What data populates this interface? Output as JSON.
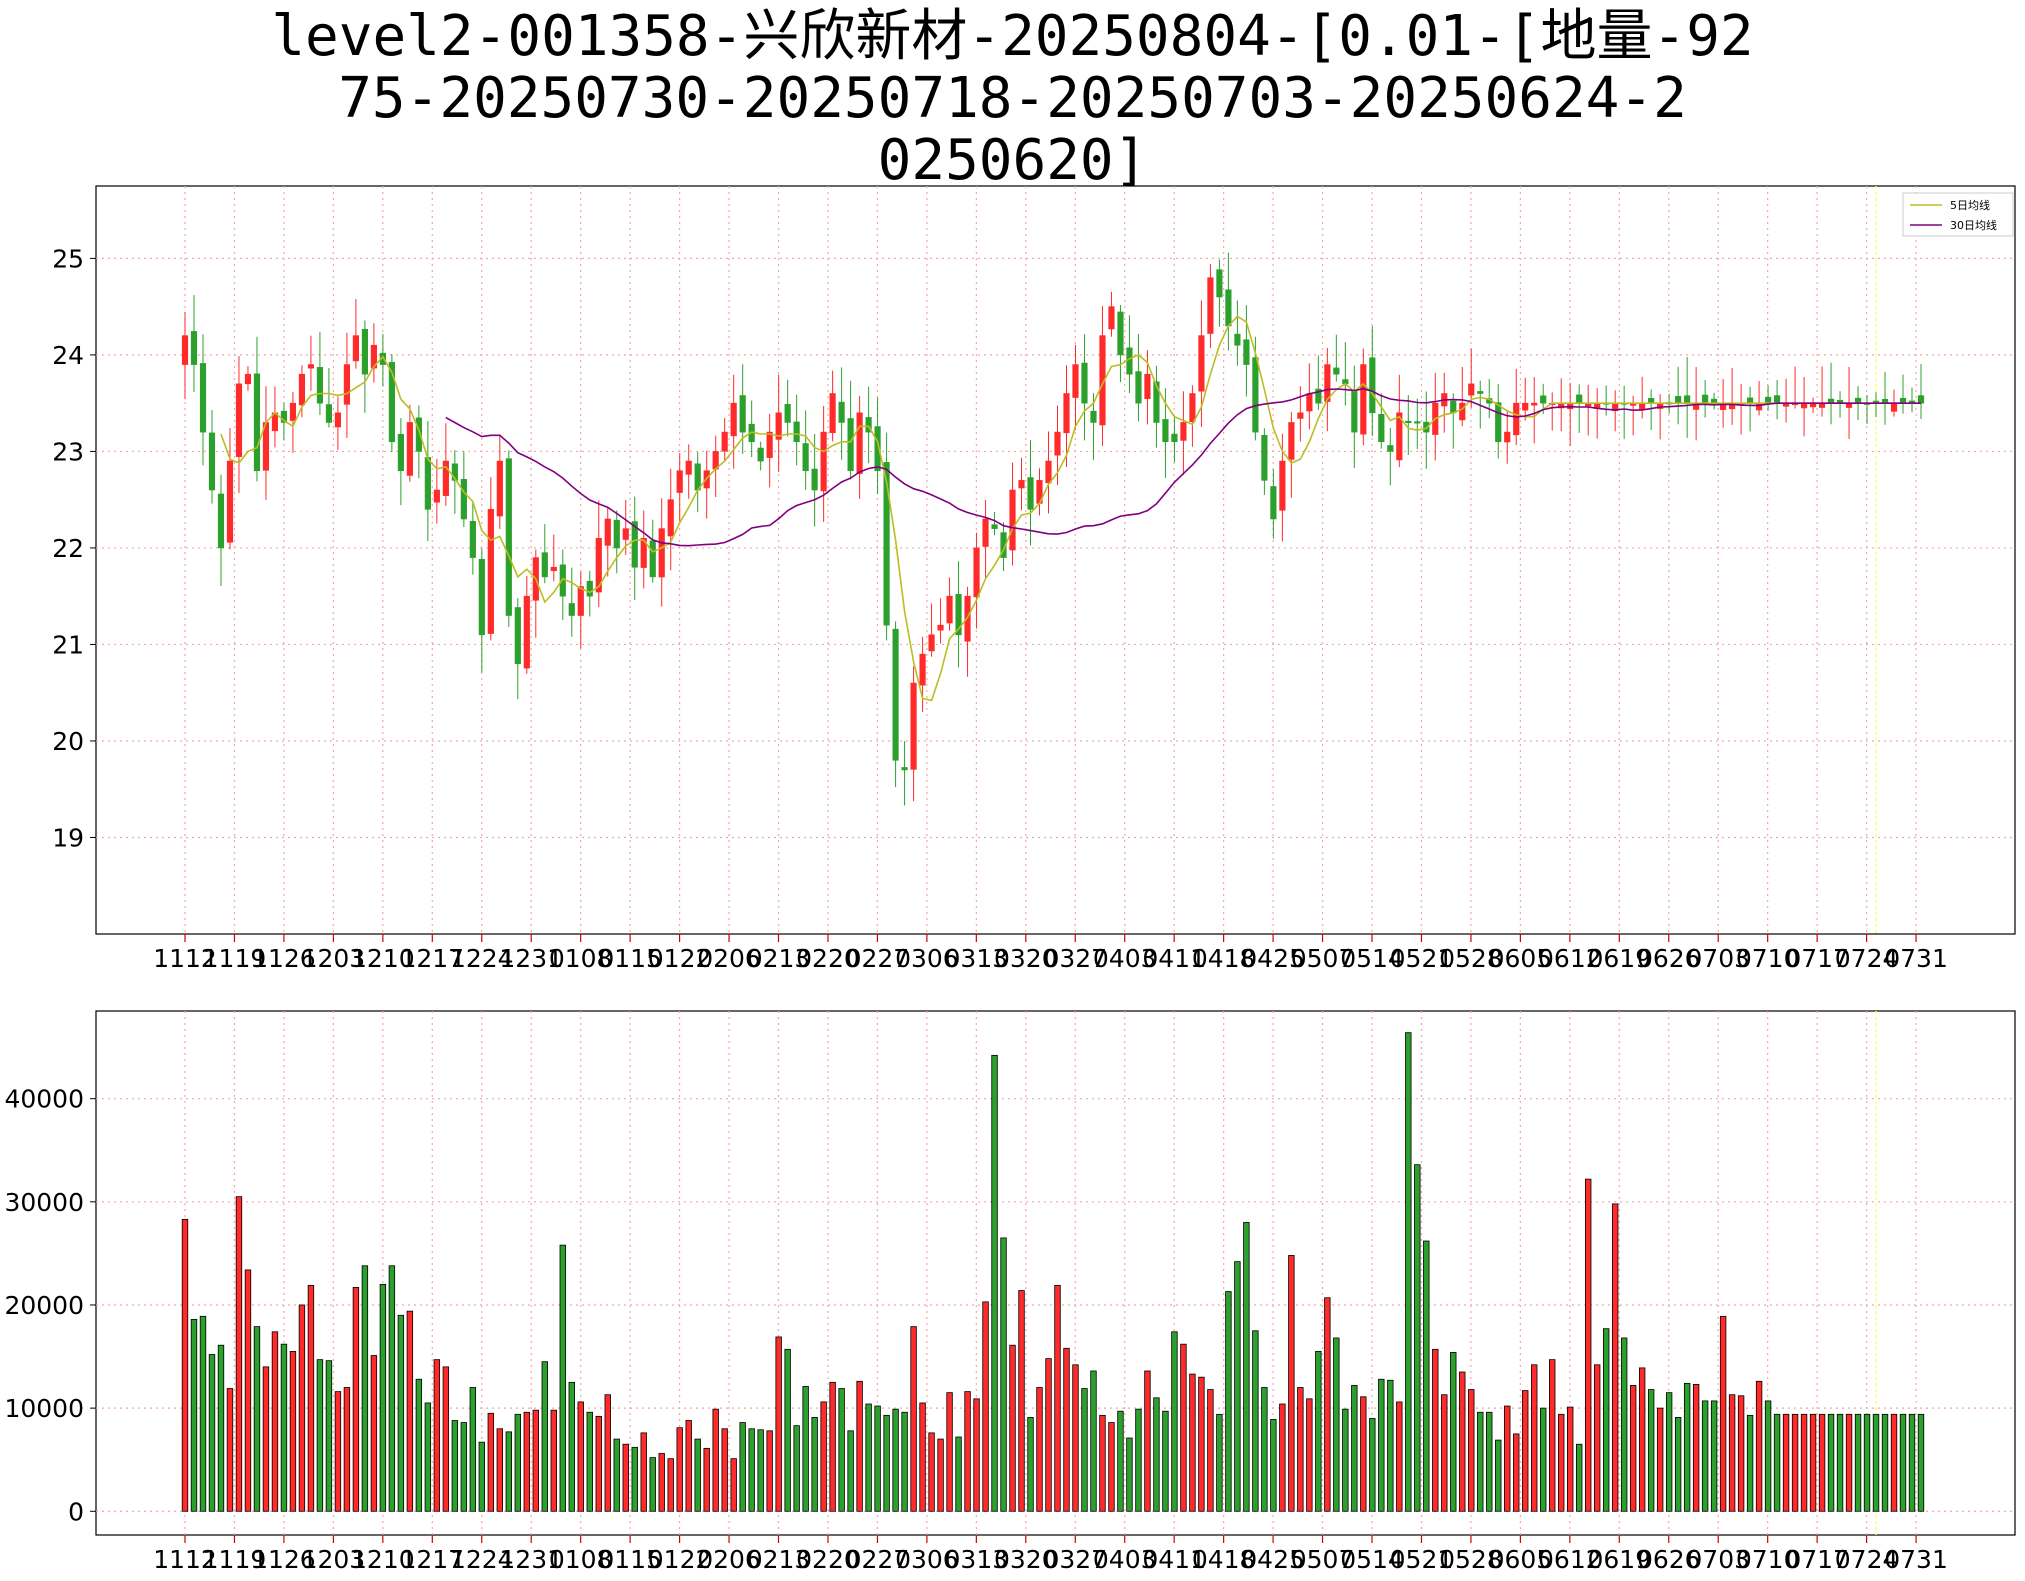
{
  "chart_data": {
    "type": "candlestick",
    "title_lines": [
      "level2-001358-兴欣新材-20250804-[0.01-[地量-92",
      "75-20250730-20250718-20250703-20250624-2",
      "0250620]"
    ],
    "x_ticks": [
      "1112",
      "1119",
      "1126",
      "1203",
      "1210",
      "1217",
      "1224",
      "1231",
      "0108",
      "0115",
      "0122",
      "0206",
      "0213",
      "0220",
      "0227",
      "0306",
      "0313",
      "0320",
      "0327",
      "0403",
      "0411",
      "0418",
      "0425",
      "0507",
      "0514",
      "0521",
      "0528",
      "0605",
      "0612",
      "0619",
      "0626",
      "0703",
      "0710",
      "0717",
      "0724",
      "0731"
    ],
    "price_axis": {
      "ylim": [
        18.0,
        25.75
      ],
      "ticks": [
        19,
        20,
        21,
        22,
        23,
        24,
        25
      ]
    },
    "volume_axis": {
      "ylim": [
        -2300,
        48500
      ],
      "ticks": [
        0,
        10000,
        20000,
        30000,
        40000
      ]
    },
    "grid": true,
    "legend": {
      "position": "top-right",
      "entries": [
        {
          "label": "5日均线",
          "color": "#bcbd22"
        },
        {
          "label": "30日均线",
          "color": "#800080"
        }
      ]
    },
    "highlight_line_index": 188,
    "colors": {
      "up": "#ff2b2b",
      "down": "#2ca02c",
      "ma5": "#bcbd22",
      "ma30": "#800080",
      "grid": "#f4a6a6",
      "highlight": "#ffff66"
    },
    "close_keypoints": [
      [
        0,
        24.2
      ],
      [
        1,
        23.9
      ],
      [
        2,
        23.2
      ],
      [
        3,
        22.6
      ],
      [
        4,
        22.0
      ],
      [
        5,
        22.9
      ],
      [
        6,
        23.7
      ],
      [
        7,
        23.8
      ],
      [
        8,
        22.8
      ],
      [
        9,
        23.3
      ],
      [
        10,
        23.4
      ],
      [
        11,
        23.3
      ],
      [
        12,
        23.5
      ],
      [
        13,
        23.8
      ],
      [
        14,
        23.9
      ],
      [
        15,
        23.5
      ],
      [
        16,
        23.3
      ],
      [
        17,
        23.4
      ],
      [
        18,
        23.9
      ],
      [
        19,
        24.2
      ],
      [
        20,
        23.8
      ],
      [
        21,
        24.1
      ],
      [
        22,
        23.9
      ],
      [
        23,
        23.1
      ],
      [
        24,
        22.8
      ],
      [
        25,
        23.3
      ],
      [
        26,
        23.0
      ],
      [
        27,
        22.4
      ],
      [
        28,
        22.6
      ],
      [
        29,
        22.9
      ],
      [
        30,
        22.7
      ],
      [
        31,
        22.3
      ],
      [
        32,
        21.9
      ],
      [
        33,
        21.1
      ],
      [
        34,
        22.4
      ],
      [
        35,
        22.9
      ],
      [
        36,
        21.3
      ],
      [
        37,
        20.8
      ],
      [
        38,
        21.5
      ],
      [
        39,
        21.9
      ],
      [
        40,
        21.7
      ],
      [
        41,
        21.8
      ],
      [
        42,
        21.5
      ],
      [
        43,
        21.3
      ],
      [
        44,
        21.6
      ],
      [
        45,
        21.5
      ],
      [
        46,
        22.1
      ],
      [
        47,
        22.3
      ],
      [
        48,
        22.0
      ],
      [
        49,
        22.2
      ],
      [
        50,
        21.8
      ],
      [
        51,
        22.1
      ],
      [
        52,
        21.7
      ],
      [
        53,
        22.2
      ],
      [
        54,
        22.5
      ],
      [
        55,
        22.8
      ],
      [
        56,
        22.9
      ],
      [
        57,
        22.6
      ],
      [
        58,
        22.8
      ],
      [
        59,
        23.0
      ],
      [
        60,
        23.2
      ],
      [
        61,
        23.5
      ],
      [
        62,
        23.2
      ],
      [
        63,
        23.1
      ],
      [
        64,
        22.9
      ],
      [
        65,
        23.2
      ],
      [
        66,
        23.4
      ],
      [
        67,
        23.3
      ],
      [
        68,
        23.1
      ],
      [
        69,
        22.8
      ],
      [
        70,
        22.6
      ],
      [
        71,
        23.2
      ],
      [
        72,
        23.6
      ],
      [
        73,
        23.3
      ],
      [
        74,
        22.8
      ],
      [
        75,
        23.4
      ],
      [
        76,
        23.2
      ],
      [
        77,
        22.8
      ],
      [
        78,
        21.2
      ],
      [
        79,
        19.8
      ],
      [
        80,
        19.7
      ],
      [
        81,
        20.6
      ],
      [
        82,
        20.9
      ],
      [
        83,
        21.1
      ],
      [
        84,
        21.2
      ],
      [
        85,
        21.5
      ],
      [
        86,
        21.1
      ],
      [
        87,
        21.5
      ],
      [
        88,
        22.0
      ],
      [
        89,
        22.3
      ],
      [
        90,
        22.2
      ],
      [
        91,
        21.9
      ],
      [
        92,
        22.6
      ],
      [
        93,
        22.7
      ],
      [
        94,
        22.4
      ],
      [
        95,
        22.7
      ],
      [
        96,
        22.9
      ],
      [
        97,
        23.2
      ],
      [
        98,
        23.6
      ],
      [
        99,
        23.9
      ],
      [
        100,
        23.5
      ],
      [
        101,
        23.3
      ],
      [
        102,
        24.2
      ],
      [
        103,
        24.5
      ],
      [
        104,
        24.0
      ],
      [
        105,
        23.8
      ],
      [
        106,
        23.5
      ],
      [
        107,
        23.8
      ],
      [
        108,
        23.3
      ],
      [
        109,
        23.1
      ],
      [
        110,
        23.1
      ],
      [
        111,
        23.3
      ],
      [
        112,
        23.6
      ],
      [
        113,
        24.2
      ],
      [
        114,
        24.8
      ],
      [
        115,
        24.6
      ],
      [
        116,
        24.3
      ],
      [
        117,
        24.1
      ],
      [
        118,
        23.9
      ],
      [
        119,
        23.2
      ],
      [
        120,
        22.7
      ],
      [
        121,
        22.3
      ],
      [
        122,
        22.9
      ],
      [
        123,
        23.3
      ],
      [
        124,
        23.4
      ],
      [
        125,
        23.6
      ],
      [
        126,
        23.5
      ],
      [
        127,
        23.9
      ],
      [
        128,
        23.8
      ],
      [
        129,
        23.7
      ],
      [
        130,
        23.2
      ],
      [
        131,
        23.9
      ],
      [
        132,
        23.4
      ],
      [
        133,
        23.1
      ],
      [
        134,
        23.0
      ],
      [
        135,
        23.4
      ],
      [
        136,
        23.3
      ],
      [
        137,
        23.3
      ],
      [
        138,
        23.2
      ],
      [
        139,
        23.5
      ],
      [
        140,
        23.6
      ],
      [
        141,
        23.4
      ],
      [
        142,
        23.5
      ],
      [
        143,
        23.7
      ],
      [
        144,
        23.6
      ],
      [
        145,
        23.5
      ],
      [
        146,
        23.1
      ],
      [
        147,
        23.2
      ],
      [
        148,
        23.5
      ]
    ],
    "volume_keypoints": [
      [
        0,
        28300
      ],
      [
        1,
        18600
      ],
      [
        2,
        18900
      ],
      [
        3,
        15200
      ],
      [
        4,
        16100
      ],
      [
        5,
        11900
      ],
      [
        6,
        30500
      ],
      [
        7,
        23400
      ],
      [
        8,
        17900
      ],
      [
        9,
        14000
      ],
      [
        10,
        17400
      ],
      [
        11,
        16200
      ],
      [
        12,
        15500
      ],
      [
        13,
        20000
      ],
      [
        14,
        21900
      ],
      [
        15,
        14700
      ],
      [
        16,
        14600
      ],
      [
        17,
        11600
      ],
      [
        18,
        12000
      ],
      [
        19,
        21700
      ],
      [
        20,
        23800
      ],
      [
        21,
        15100
      ],
      [
        22,
        22000
      ],
      [
        23,
        23800
      ],
      [
        24,
        19000
      ],
      [
        25,
        19400
      ],
      [
        26,
        12800
      ],
      [
        27,
        10500
      ],
      [
        28,
        14700
      ],
      [
        29,
        14000
      ],
      [
        30,
        8800
      ],
      [
        31,
        8600
      ],
      [
        32,
        12000
      ],
      [
        33,
        6700
      ],
      [
        34,
        9500
      ],
      [
        35,
        8000
      ],
      [
        36,
        7700
      ],
      [
        37,
        9400
      ],
      [
        38,
        9600
      ],
      [
        39,
        9800
      ],
      [
        40,
        14500
      ],
      [
        41,
        9800
      ],
      [
        42,
        25800
      ],
      [
        43,
        12500
      ],
      [
        44,
        10600
      ],
      [
        45,
        9600
      ],
      [
        46,
        9200
      ],
      [
        47,
        11300
      ],
      [
        48,
        7000
      ],
      [
        49,
        6500
      ],
      [
        50,
        6200
      ],
      [
        51,
        7600
      ],
      [
        52,
        5200
      ],
      [
        53,
        5600
      ],
      [
        54,
        5100
      ],
      [
        55,
        8100
      ],
      [
        56,
        8800
      ],
      [
        57,
        7000
      ],
      [
        58,
        6100
      ],
      [
        59,
        9900
      ],
      [
        60,
        8000
      ],
      [
        61,
        5100
      ],
      [
        62,
        8600
      ],
      [
        63,
        8000
      ],
      [
        64,
        7900
      ],
      [
        65,
        7800
      ],
      [
        66,
        16900
      ],
      [
        67,
        15700
      ],
      [
        68,
        8300
      ],
      [
        69,
        12100
      ],
      [
        70,
        9100
      ],
      [
        71,
        10600
      ],
      [
        72,
        12500
      ],
      [
        73,
        11900
      ],
      [
        74,
        7800
      ],
      [
        75,
        12600
      ],
      [
        76,
        10400
      ],
      [
        77,
        10200
      ],
      [
        78,
        9300
      ],
      [
        79,
        9900
      ],
      [
        80,
        9600
      ],
      [
        81,
        17900
      ],
      [
        82,
        10500
      ],
      [
        83,
        7600
      ],
      [
        84,
        7000
      ],
      [
        85,
        11500
      ],
      [
        86,
        7200
      ],
      [
        87,
        11600
      ],
      [
        88,
        10900
      ],
      [
        89,
        20300
      ],
      [
        90,
        44200
      ],
      [
        91,
        26500
      ],
      [
        92,
        16100
      ],
      [
        93,
        21400
      ],
      [
        94,
        9100
      ],
      [
        95,
        12000
      ],
      [
        96,
        14800
      ],
      [
        97,
        21900
      ],
      [
        98,
        15800
      ],
      [
        99,
        14200
      ],
      [
        100,
        11900
      ],
      [
        101,
        13600
      ],
      [
        102,
        9300
      ],
      [
        103,
        8600
      ],
      [
        104,
        9700
      ],
      [
        105,
        7100
      ],
      [
        106,
        9900
      ],
      [
        107,
        13600
      ],
      [
        108,
        11000
      ],
      [
        109,
        9700
      ],
      [
        110,
        17400
      ],
      [
        111,
        16200
      ],
      [
        112,
        13300
      ],
      [
        113,
        13000
      ],
      [
        114,
        11800
      ],
      [
        115,
        9400
      ],
      [
        116,
        21300
      ],
      [
        117,
        24200
      ],
      [
        118,
        28000
      ],
      [
        119,
        17500
      ],
      [
        120,
        12000
      ],
      [
        121,
        8900
      ],
      [
        122,
        10400
      ],
      [
        123,
        24800
      ],
      [
        124,
        12000
      ],
      [
        125,
        10900
      ],
      [
        126,
        15500
      ],
      [
        127,
        20700
      ],
      [
        128,
        16800
      ],
      [
        129,
        9900
      ],
      [
        130,
        12200
      ],
      [
        131,
        11100
      ],
      [
        132,
        9000
      ],
      [
        133,
        12800
      ],
      [
        134,
        12700
      ],
      [
        135,
        10600
      ],
      [
        136,
        46400
      ],
      [
        137,
        33600
      ],
      [
        138,
        26200
      ],
      [
        139,
        15700
      ],
      [
        140,
        11300
      ],
      [
        141,
        15400
      ],
      [
        142,
        13500
      ],
      [
        143,
        11800
      ],
      [
        144,
        9600
      ],
      [
        145,
        9600
      ],
      [
        146,
        6900
      ],
      [
        147,
        10200
      ],
      [
        148,
        7500
      ],
      [
        149,
        11700
      ],
      [
        150,
        14200
      ],
      [
        151,
        10000
      ],
      [
        152,
        14700
      ],
      [
        153,
        9400
      ],
      [
        154,
        10100
      ],
      [
        155,
        6500
      ],
      [
        156,
        32200
      ],
      [
        157,
        14200
      ],
      [
        158,
        17700
      ],
      [
        159,
        29800
      ],
      [
        160,
        16800
      ],
      [
        161,
        12200
      ],
      [
        162,
        13900
      ],
      [
        163,
        11800
      ],
      [
        164,
        10000
      ],
      [
        165,
        11500
      ],
      [
        166,
        9100
      ],
      [
        167,
        12400
      ],
      [
        168,
        12300
      ],
      [
        169,
        10700
      ],
      [
        170,
        10700
      ],
      [
        171,
        18900
      ],
      [
        172,
        11300
      ],
      [
        173,
        11200
      ],
      [
        174,
        9300
      ],
      [
        175,
        12600
      ],
      [
        176,
        10700
      ],
      [
        177,
        9400
      ]
    ]
  }
}
